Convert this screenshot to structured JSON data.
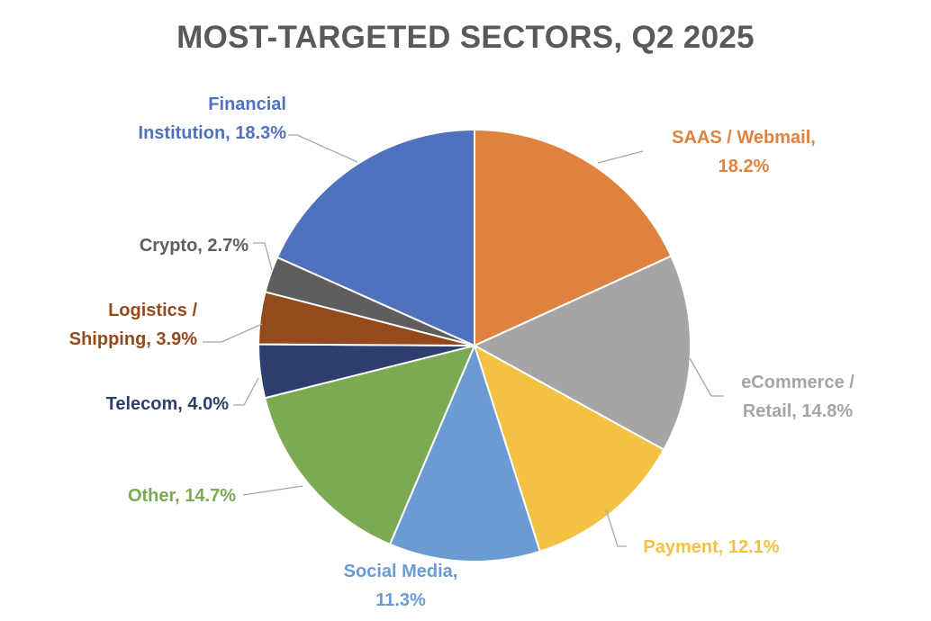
{
  "chart_data": {
    "type": "pie",
    "title": "MOST-TARGETED SECTORS, Q2 2025",
    "slices": [
      {
        "label_lines": [
          "SAAS / Webmail,",
          "18.2%"
        ],
        "category": "SAAS / Webmail",
        "value": 18.2,
        "color": "#E0823F"
      },
      {
        "label_lines": [
          "eCommerce /",
          "Retail, 14.8%"
        ],
        "category": "eCommerce / Retail",
        "value": 14.8,
        "color": "#A5A5A5"
      },
      {
        "label_lines": [
          "Payment, 12.1%"
        ],
        "category": "Payment",
        "value": 12.1,
        "color": "#F4C242"
      },
      {
        "label_lines": [
          "Social Media,",
          "11.3%"
        ],
        "category": "Social Media",
        "value": 11.3,
        "color": "#6A9BD2"
      },
      {
        "label_lines": [
          "Other, 14.7%"
        ],
        "category": "Other",
        "value": 14.7,
        "color": "#7CAA53"
      },
      {
        "label_lines": [
          "Telecom, 4.0%"
        ],
        "category": "Telecom",
        "value": 4.0,
        "color": "#2C3F6E"
      },
      {
        "label_lines": [
          "Logistics /",
          "Shipping, 3.9%"
        ],
        "category": "Logistics / Shipping",
        "value": 3.9,
        "color": "#954A1E"
      },
      {
        "label_lines": [
          "Crypto, 2.7%"
        ],
        "category": "Crypto",
        "value": 2.7,
        "color": "#5E5E5E"
      },
      {
        "label_lines": [
          "Financial",
          "Institution, 18.3%"
        ],
        "category": "Financial Institution",
        "value": 18.3,
        "color": "#4F71BE"
      }
    ]
  }
}
